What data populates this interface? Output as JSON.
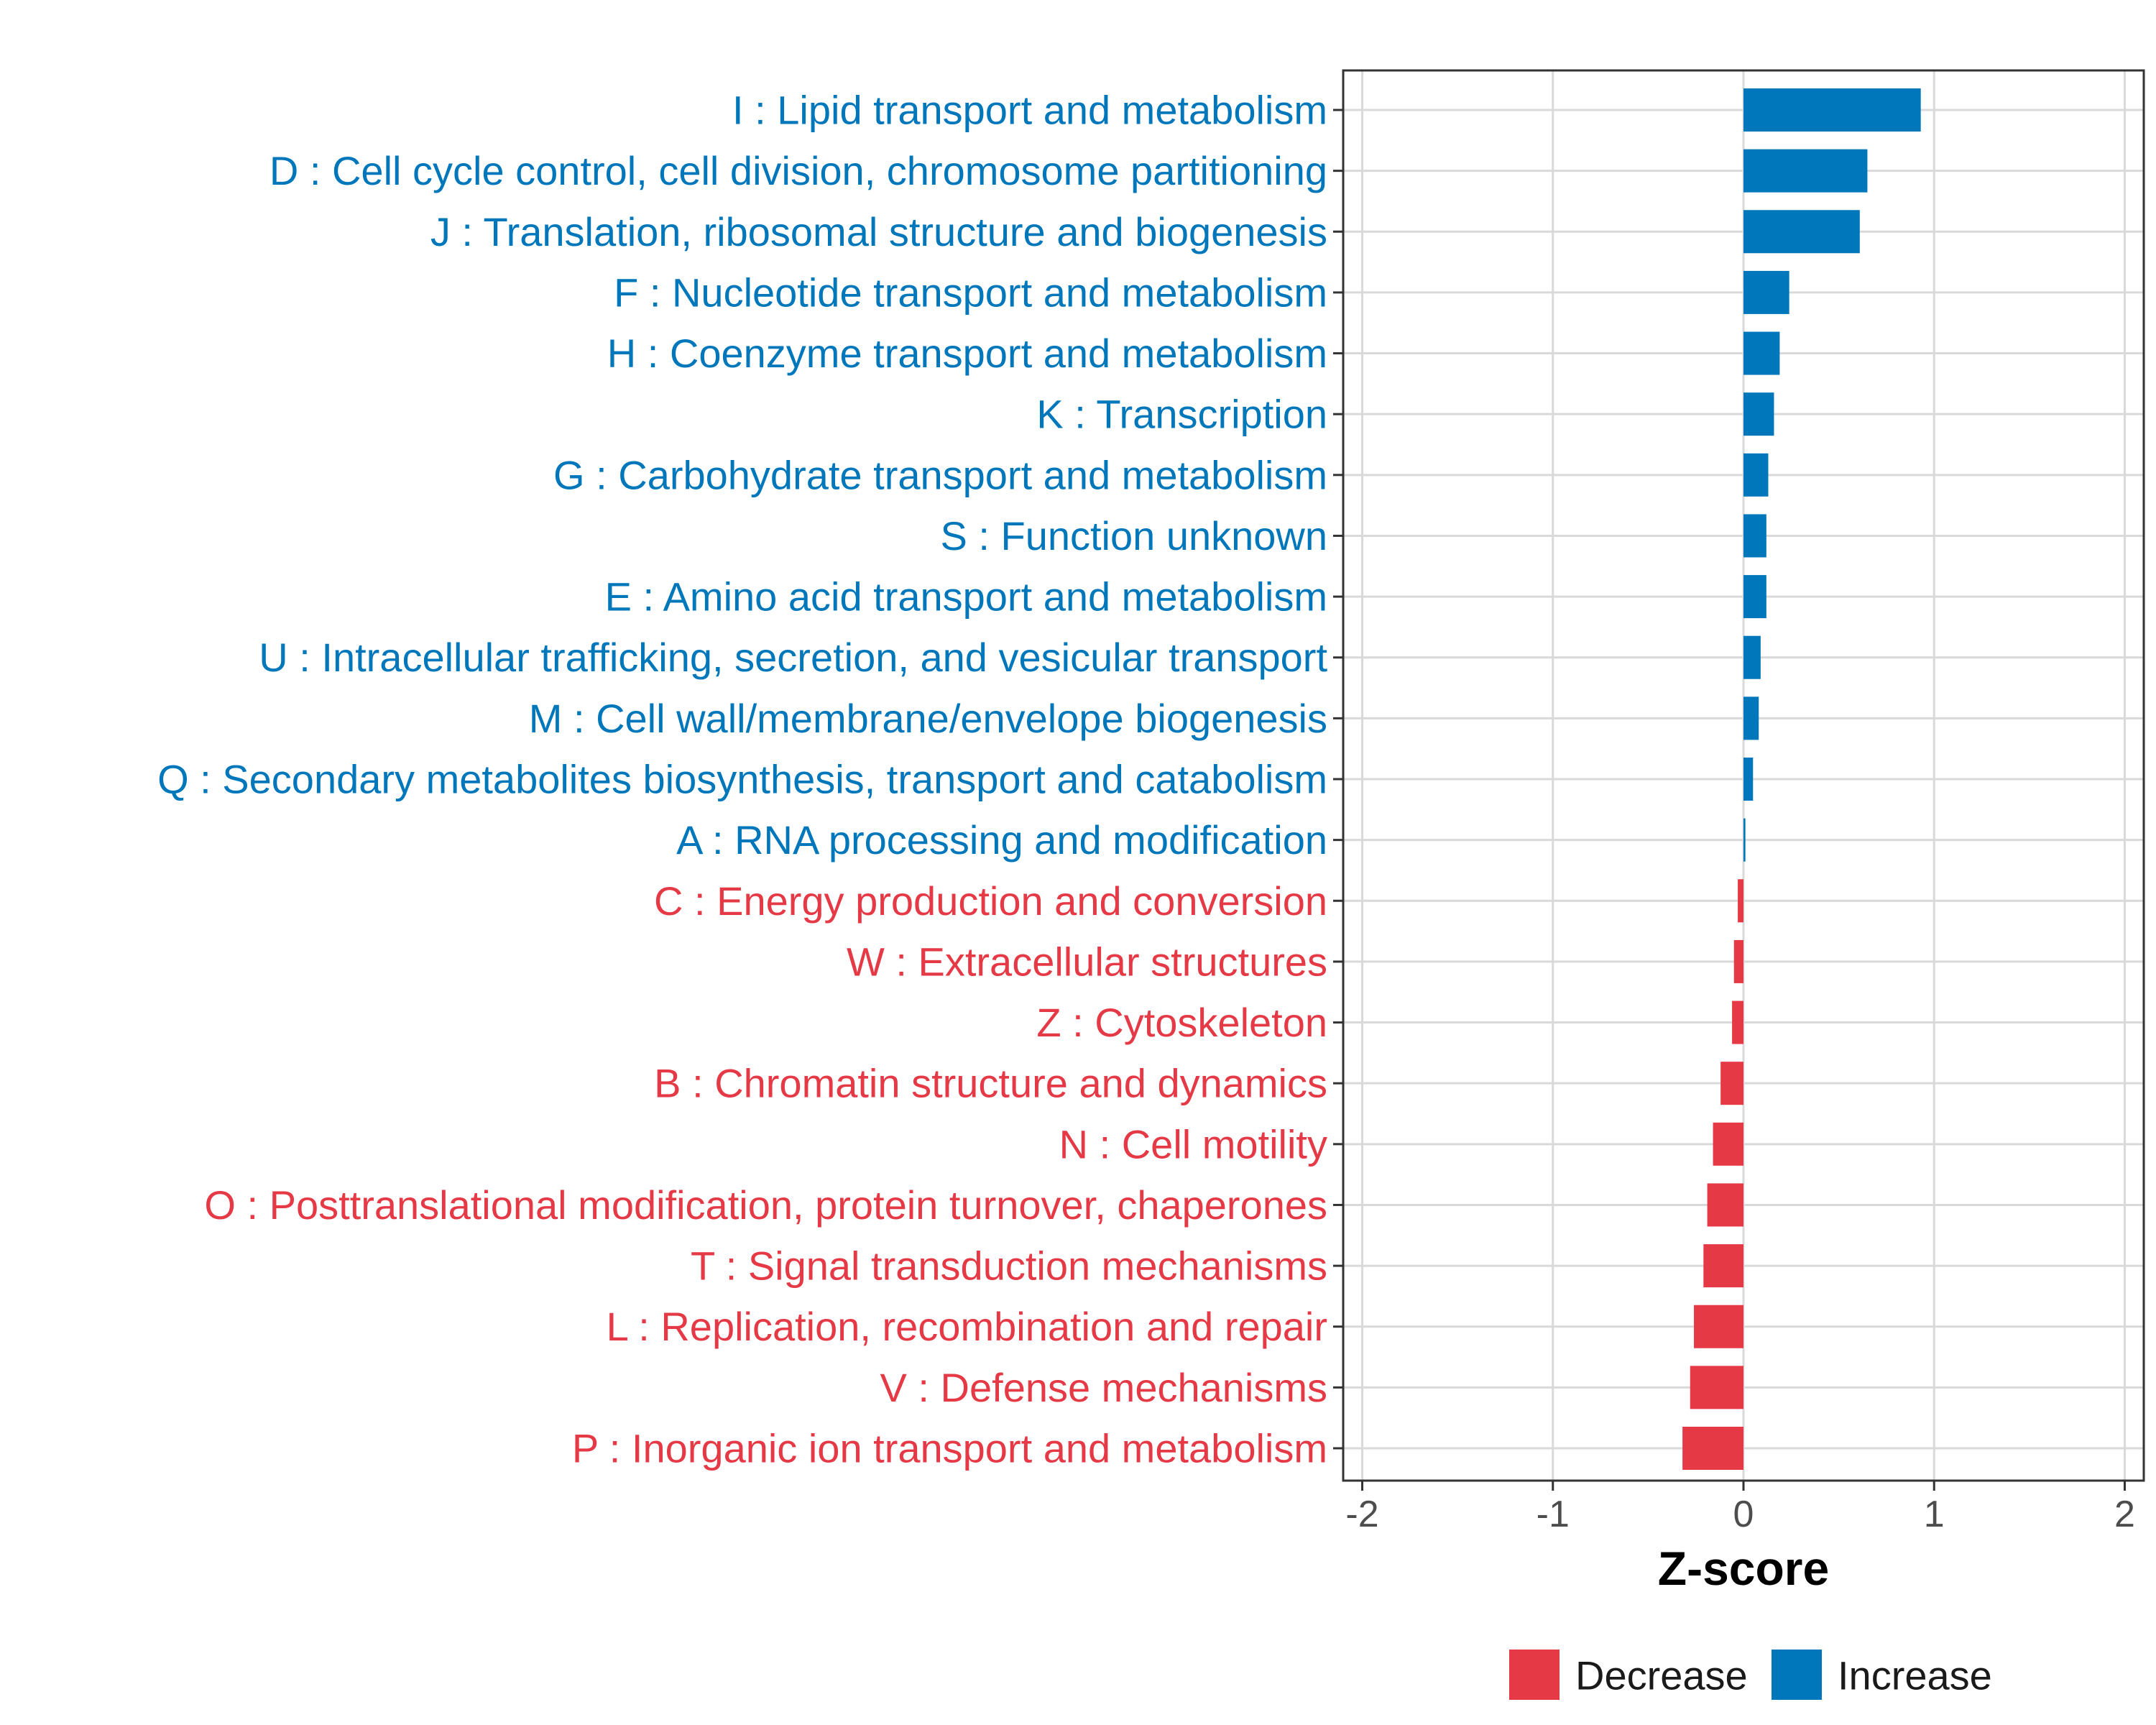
{
  "chart_data": {
    "type": "bar",
    "orientation": "horizontal",
    "xlabel": "Z-score",
    "ylabel": "",
    "xlim": [
      -2.1,
      2.1
    ],
    "xticks": [
      -2,
      -1,
      0,
      1,
      2
    ],
    "grid": true,
    "legend_position": "bottom-right",
    "categories": [
      "I : Lipid transport and metabolism",
      "D : Cell cycle control, cell division, chromosome partitioning",
      "J : Translation, ribosomal structure and biogenesis",
      "F : Nucleotide transport and metabolism",
      "H : Coenzyme transport and metabolism",
      "K : Transcription",
      "G : Carbohydrate transport and metabolism",
      "S : Function unknown",
      "E : Amino acid transport and metabolism",
      "U : Intracellular trafficking, secretion, and vesicular transport",
      "M : Cell wall/membrane/envelope biogenesis",
      "Q : Secondary metabolites biosynthesis, transport and catabolism",
      "A : RNA processing and modification",
      "C : Energy production and conversion",
      "W : Extracellular structures",
      "Z : Cytoskeleton",
      "B : Chromatin structure and dynamics",
      "N : Cell motility",
      "O : Posttranslational modification, protein turnover, chaperones",
      "T : Signal transduction mechanisms",
      "L : Replication, recombination and repair",
      "V : Defense mechanisms",
      "P : Inorganic ion transport and metabolism"
    ],
    "values": [
      0.93,
      0.65,
      0.61,
      0.24,
      0.19,
      0.16,
      0.13,
      0.12,
      0.12,
      0.09,
      0.08,
      0.05,
      0.01,
      -0.03,
      -0.05,
      -0.06,
      -0.12,
      -0.16,
      -0.19,
      -0.21,
      -0.26,
      -0.28,
      -0.32
    ],
    "direction": [
      "Increase",
      "Increase",
      "Increase",
      "Increase",
      "Increase",
      "Increase",
      "Increase",
      "Increase",
      "Increase",
      "Increase",
      "Increase",
      "Increase",
      "Increase",
      "Decrease",
      "Decrease",
      "Decrease",
      "Decrease",
      "Decrease",
      "Decrease",
      "Decrease",
      "Decrease",
      "Decrease",
      "Decrease"
    ],
    "colors": {
      "Decrease": "#e63946",
      "Increase": "#0077bb"
    },
    "legend": [
      {
        "name": "Decrease",
        "color": "#e63946"
      },
      {
        "name": "Increase",
        "color": "#0077bb"
      }
    ]
  }
}
